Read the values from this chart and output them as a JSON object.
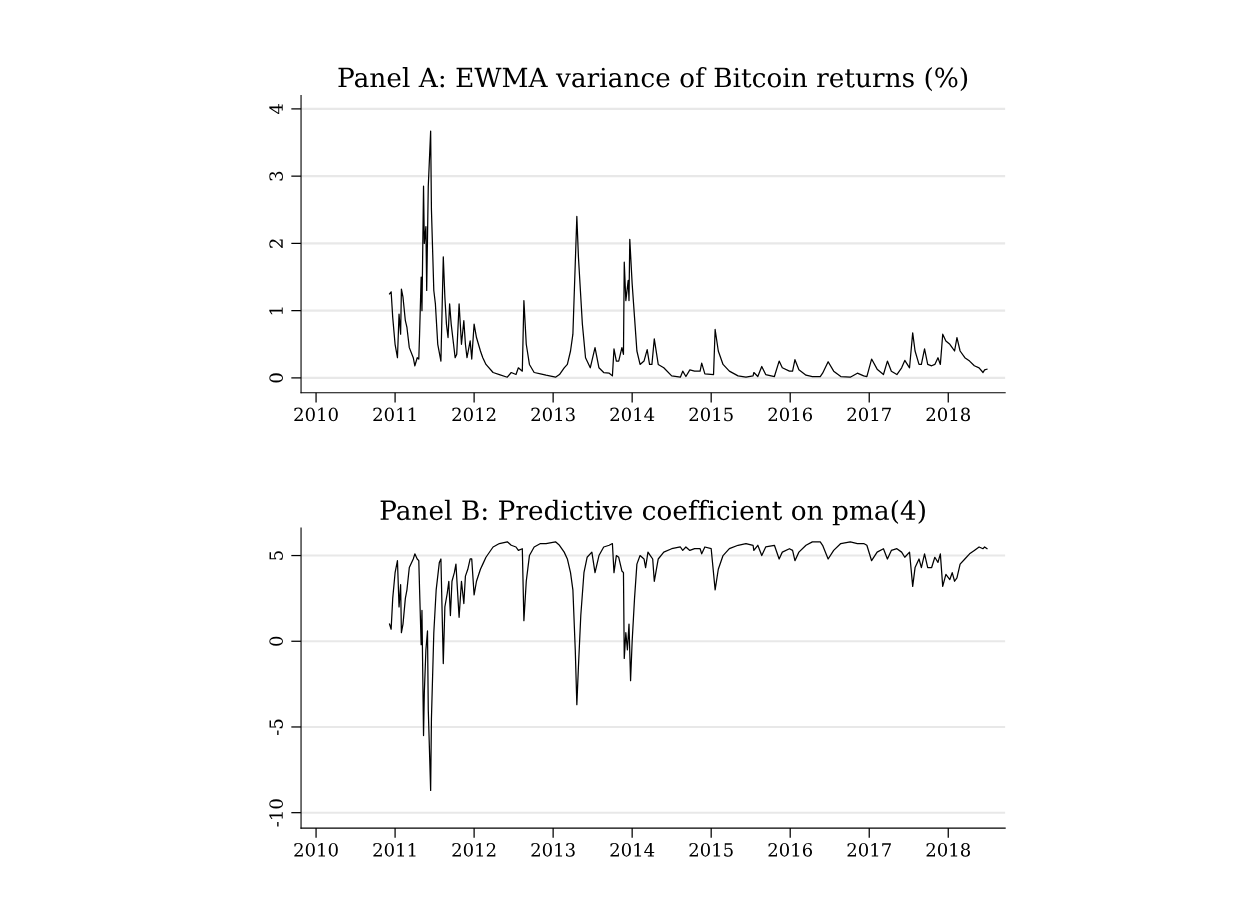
{
  "chart_data": [
    {
      "type": "line",
      "title": "Panel A: EWMA variance of Bitcoin returns (%)",
      "grid": "y",
      "xlim": [
        2009.81,
        2018.72
      ],
      "xticks": [
        2010,
        2011,
        2012,
        2013,
        2014,
        2015,
        2016,
        2017,
        2018
      ],
      "ylim": [
        -0.22,
        4.2
      ],
      "yticks": [
        0,
        1,
        2,
        3,
        4
      ],
      "series": [
        {
          "color": "#000000",
          "x": [
            2010.93,
            2010.95,
            2010.97,
            2011.0,
            2011.03,
            2011.05,
            2011.07,
            2011.08,
            2011.1,
            2011.13,
            2011.15,
            2011.18,
            2011.23,
            2011.25,
            2011.28,
            2011.3,
            2011.31,
            2011.33,
            2011.34,
            2011.36,
            2011.37,
            2011.39,
            2011.4,
            2011.42,
            2011.45,
            2011.46,
            2011.49,
            2011.51,
            2011.54,
            2011.58,
            2011.61,
            2011.63,
            2011.65,
            2011.67,
            2011.69,
            2011.71,
            2011.74,
            2011.76,
            2011.78,
            2011.81,
            2011.84,
            2011.87,
            2011.89,
            2011.91,
            2011.95,
            2011.97,
            2012.0,
            2012.03,
            2012.08,
            2012.11,
            2012.15,
            2012.24,
            2012.32,
            2012.42,
            2012.47,
            2012.53,
            2012.56,
            2012.61,
            2012.63,
            2012.66,
            2012.7,
            2012.76,
            2012.84,
            2012.91,
            2013.03,
            2013.08,
            2013.14,
            2013.18,
            2013.22,
            2013.25,
            2013.28,
            2013.3,
            2013.32,
            2013.34,
            2013.37,
            2013.41,
            2013.47,
            2013.53,
            2013.58,
            2013.64,
            2013.71,
            2013.75,
            2013.77,
            2013.8,
            2013.83,
            2013.87,
            2013.89,
            2013.9,
            2013.92,
            2013.95,
            2013.96,
            2013.97,
            2014.0,
            2014.03,
            2014.06,
            2014.1,
            2014.15,
            2014.19,
            2014.22,
            2014.25,
            2014.28,
            2014.33,
            2014.4,
            2014.5,
            2014.61,
            2014.64,
            2014.68,
            2014.73,
            2014.79,
            2014.86,
            2014.88,
            2014.92,
            2015.03,
            2015.05,
            2015.09,
            2015.15,
            2015.23,
            2015.34,
            2015.44,
            2015.53,
            2015.54,
            2015.59,
            2015.64,
            2015.69,
            2015.8,
            2015.86,
            2015.9,
            2015.99,
            2016.03,
            2016.06,
            2016.11,
            2016.2,
            2016.28,
            2016.38,
            2016.41,
            2016.48,
            2016.55,
            2016.64,
            2016.76,
            2016.85,
            2016.93,
            2016.97,
            2017.03,
            2017.1,
            2017.18,
            2017.23,
            2017.28,
            2017.35,
            2017.41,
            2017.45,
            2017.51,
            2017.55,
            2017.58,
            2017.63,
            2017.66,
            2017.7,
            2017.74,
            2017.79,
            2017.83,
            2017.87,
            2017.9,
            2017.93,
            2017.97,
            2018.02,
            2018.05,
            2018.08,
            2018.11,
            2018.15,
            2018.21,
            2018.27,
            2018.33,
            2018.39,
            2018.44,
            2018.46,
            2018.49
          ],
          "values": [
            1.25,
            1.28,
            0.9,
            0.5,
            0.3,
            0.95,
            0.65,
            1.32,
            1.2,
            0.85,
            0.75,
            0.45,
            0.3,
            0.18,
            0.3,
            0.28,
            0.65,
            1.5,
            1.0,
            2.85,
            2.0,
            2.25,
            1.3,
            2.85,
            3.67,
            2.5,
            1.3,
            1.1,
            0.5,
            0.25,
            1.8,
            1.2,
            0.8,
            0.6,
            1.1,
            0.8,
            0.5,
            0.3,
            0.35,
            1.1,
            0.5,
            0.85,
            0.5,
            0.3,
            0.55,
            0.28,
            0.8,
            0.6,
            0.4,
            0.3,
            0.2,
            0.08,
            0.05,
            0.01,
            0.08,
            0.05,
            0.15,
            0.1,
            1.15,
            0.5,
            0.2,
            0.08,
            0.06,
            0.04,
            0.01,
            0.05,
            0.15,
            0.2,
            0.4,
            0.65,
            1.7,
            2.4,
            1.8,
            1.4,
            0.8,
            0.3,
            0.15,
            0.45,
            0.15,
            0.08,
            0.07,
            0.03,
            0.43,
            0.25,
            0.25,
            0.45,
            0.35,
            1.72,
            1.15,
            1.45,
            1.15,
            2.06,
            1.4,
            0.9,
            0.4,
            0.2,
            0.25,
            0.42,
            0.2,
            0.2,
            0.58,
            0.2,
            0.15,
            0.03,
            0.01,
            0.1,
            0.02,
            0.12,
            0.1,
            0.1,
            0.22,
            0.06,
            0.05,
            0.72,
            0.4,
            0.2,
            0.1,
            0.03,
            0.01,
            0.03,
            0.08,
            0.02,
            0.17,
            0.05,
            0.02,
            0.25,
            0.15,
            0.1,
            0.1,
            0.27,
            0.12,
            0.04,
            0.02,
            0.02,
            0.07,
            0.24,
            0.1,
            0.02,
            0.01,
            0.07,
            0.03,
            0.02,
            0.28,
            0.13,
            0.05,
            0.25,
            0.1,
            0.05,
            0.15,
            0.26,
            0.15,
            0.67,
            0.4,
            0.2,
            0.2,
            0.43,
            0.2,
            0.18,
            0.2,
            0.3,
            0.2,
            0.65,
            0.55,
            0.5,
            0.45,
            0.4,
            0.6,
            0.4,
            0.3,
            0.25,
            0.18,
            0.15,
            0.08,
            0.12,
            0.13
          ]
        }
      ]
    },
    {
      "type": "line",
      "title": "Panel B: Predictive coefficient on pma(4)",
      "grid": "y",
      "xlim": [
        2009.81,
        2018.72
      ],
      "xticks": [
        2010,
        2011,
        2012,
        2013,
        2014,
        2015,
        2016,
        2017,
        2018
      ],
      "ylim": [
        -10.9,
        6.6
      ],
      "yticks": [
        {
          "value": -10,
          "label": "-10"
        },
        {
          "value": -5,
          "label": "-5"
        },
        0,
        5
      ],
      "series": [
        {
          "color": "#000000",
          "x": [
            2010.93,
            2010.95,
            2010.97,
            2011.0,
            2011.03,
            2011.05,
            2011.07,
            2011.08,
            2011.1,
            2011.13,
            2011.15,
            2011.18,
            2011.23,
            2011.25,
            2011.28,
            2011.3,
            2011.31,
            2011.33,
            2011.34,
            2011.36,
            2011.37,
            2011.39,
            2011.41,
            2011.42,
            2011.45,
            2011.46,
            2011.49,
            2011.52,
            2011.56,
            2011.58,
            2011.61,
            2011.63,
            2011.66,
            2011.68,
            2011.7,
            2011.72,
            2011.75,
            2011.77,
            2011.81,
            2011.84,
            2011.87,
            2011.89,
            2011.92,
            2011.95,
            2011.97,
            2012.0,
            2012.03,
            2012.08,
            2012.11,
            2012.15,
            2012.24,
            2012.32,
            2012.42,
            2012.47,
            2012.53,
            2012.56,
            2012.61,
            2012.63,
            2012.66,
            2012.7,
            2012.76,
            2012.84,
            2012.91,
            2013.03,
            2013.08,
            2013.14,
            2013.18,
            2013.22,
            2013.25,
            2013.28,
            2013.3,
            2013.32,
            2013.35,
            2013.39,
            2013.43,
            2013.49,
            2013.53,
            2013.58,
            2013.64,
            2013.71,
            2013.75,
            2013.77,
            2013.8,
            2013.83,
            2013.87,
            2013.89,
            2013.9,
            2013.92,
            2013.94,
            2013.96,
            2013.98,
            2014.0,
            2014.03,
            2014.06,
            2014.1,
            2014.15,
            2014.17,
            2014.2,
            2014.23,
            2014.26,
            2014.28,
            2014.33,
            2014.4,
            2014.5,
            2014.61,
            2014.64,
            2014.68,
            2014.73,
            2014.79,
            2014.86,
            2014.88,
            2014.92,
            2015.0,
            2015.05,
            2015.09,
            2015.15,
            2015.23,
            2015.34,
            2015.44,
            2015.53,
            2015.54,
            2015.59,
            2015.64,
            2015.69,
            2015.8,
            2015.86,
            2015.9,
            2015.99,
            2016.03,
            2016.06,
            2016.11,
            2016.2,
            2016.28,
            2016.38,
            2016.41,
            2016.48,
            2016.55,
            2016.64,
            2016.76,
            2016.85,
            2016.93,
            2016.97,
            2017.03,
            2017.1,
            2017.18,
            2017.23,
            2017.28,
            2017.35,
            2017.41,
            2017.45,
            2017.51,
            2017.55,
            2017.58,
            2017.63,
            2017.66,
            2017.7,
            2017.74,
            2017.79,
            2017.83,
            2017.87,
            2017.9,
            2017.93,
            2017.97,
            2018.02,
            2018.05,
            2018.08,
            2018.11,
            2018.15,
            2018.21,
            2018.27,
            2018.33,
            2018.39,
            2018.44,
            2018.46,
            2018.49
          ],
          "values": [
            1.0,
            0.7,
            2.5,
            4.0,
            4.7,
            2.0,
            3.3,
            0.5,
            1.0,
            2.5,
            3.0,
            4.3,
            4.8,
            5.1,
            4.8,
            4.7,
            3.0,
            -0.2,
            1.8,
            -5.5,
            -3.0,
            -0.5,
            0.6,
            -4.0,
            -8.7,
            -4.5,
            0.5,
            3.0,
            4.6,
            4.8,
            -1.3,
            2.0,
            2.8,
            3.5,
            1.5,
            3.5,
            4.0,
            4.5,
            1.4,
            3.5,
            2.2,
            3.8,
            4.2,
            4.8,
            4.8,
            2.7,
            3.5,
            4.2,
            4.5,
            4.9,
            5.5,
            5.7,
            5.8,
            5.6,
            5.5,
            5.3,
            5.4,
            1.2,
            3.5,
            5.0,
            5.5,
            5.7,
            5.7,
            5.8,
            5.6,
            5.2,
            4.8,
            4.0,
            3.0,
            -0.5,
            -3.7,
            -1.5,
            1.5,
            4.0,
            4.9,
            5.2,
            4.0,
            5.0,
            5.5,
            5.6,
            5.7,
            4.0,
            5.0,
            4.9,
            4.1,
            4.0,
            -1.0,
            0.5,
            -0.5,
            1.0,
            -2.3,
            0.0,
            2.5,
            4.5,
            5.0,
            4.8,
            4.3,
            5.2,
            5.0,
            4.8,
            3.5,
            4.8,
            5.2,
            5.4,
            5.5,
            5.3,
            5.5,
            5.3,
            5.4,
            5.4,
            5.1,
            5.5,
            5.4,
            3.0,
            4.2,
            5.0,
            5.4,
            5.6,
            5.7,
            5.6,
            5.3,
            5.6,
            5.0,
            5.5,
            5.6,
            4.8,
            5.2,
            5.4,
            5.3,
            4.7,
            5.2,
            5.6,
            5.8,
            5.8,
            5.6,
            4.8,
            5.3,
            5.7,
            5.8,
            5.7,
            5.7,
            5.6,
            4.7,
            5.2,
            5.4,
            4.8,
            5.3,
            5.4,
            5.2,
            4.9,
            5.2,
            3.2,
            4.3,
            4.8,
            4.3,
            5.1,
            4.3,
            4.3,
            4.9,
            4.6,
            5.1,
            3.2,
            3.9,
            3.6,
            4.0,
            3.5,
            3.7,
            4.5,
            4.8,
            5.1,
            5.3,
            5.5,
            5.4,
            5.5,
            5.4
          ]
        }
      ]
    }
  ]
}
